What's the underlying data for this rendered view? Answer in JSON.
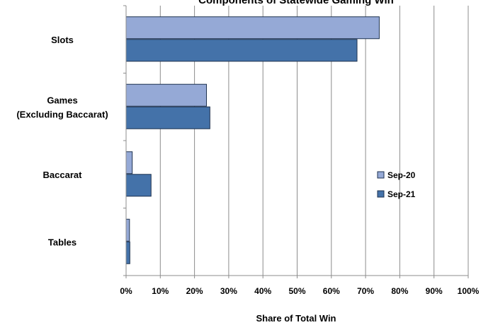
{
  "chart_data": {
    "type": "bar",
    "orientation": "horizontal",
    "title": "Components of Statewide Gaming Win",
    "xlabel": "Share of Total Win",
    "ylabel": "",
    "xlim": [
      0,
      100
    ],
    "x_ticks": [
      "0%",
      "10%",
      "20%",
      "30%",
      "40%",
      "50%",
      "60%",
      "70%",
      "80%",
      "90%",
      "100%"
    ],
    "categories": [
      {
        "lines": [
          "Slots"
        ]
      },
      {
        "lines": [
          "Games",
          "(Excluding Baccarat)"
        ]
      },
      {
        "lines": [
          "Baccarat"
        ]
      },
      {
        "lines": [
          "Tables"
        ]
      }
    ],
    "series": [
      {
        "name": "Sep-20",
        "color": "#95A9D6",
        "values": [
          74,
          23.5,
          1.8,
          1.0
        ]
      },
      {
        "name": "Sep-21",
        "color": "#4472A9",
        "values": [
          67.5,
          24.5,
          7.3,
          1.1
        ]
      }
    ],
    "grid": true,
    "legend_position": "right"
  }
}
